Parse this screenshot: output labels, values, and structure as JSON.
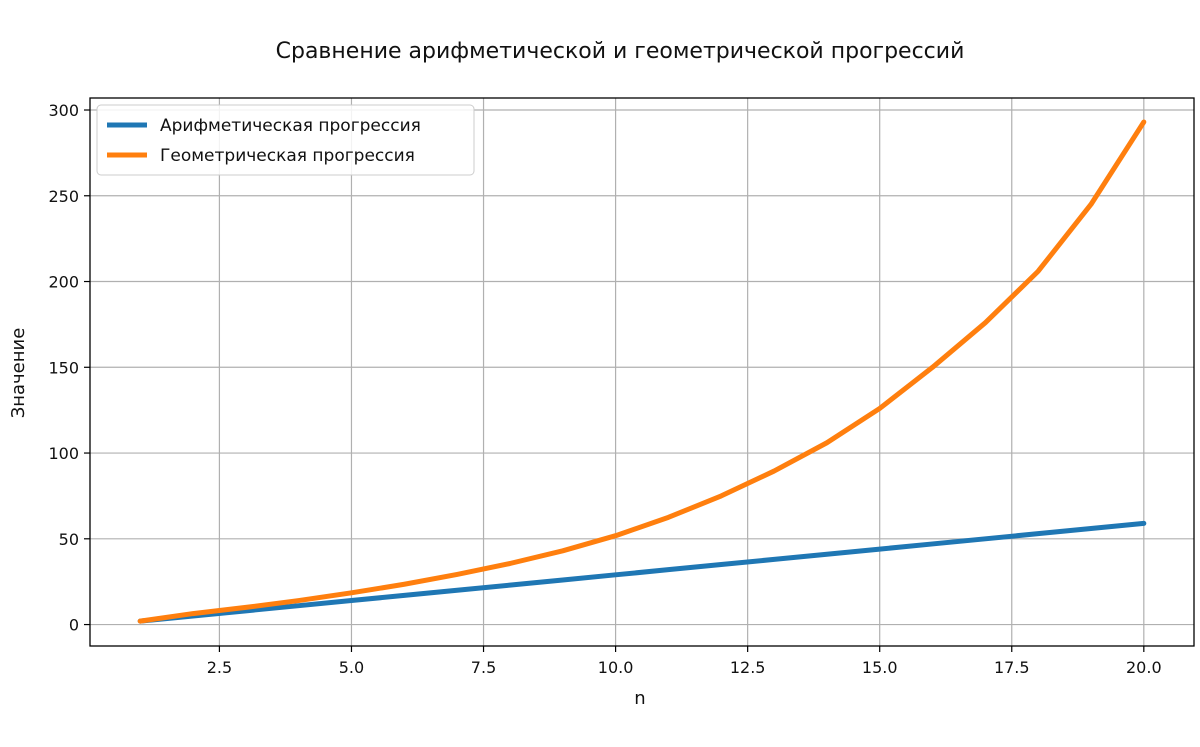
{
  "chart_data": {
    "type": "line",
    "title": "Сравнение арифметической и геометрической прогрессий",
    "xlabel": "n",
    "ylabel": "Значение",
    "xlim": [
      0.05,
      20.95
    ],
    "ylim": [
      -12.5,
      307
    ],
    "xticks": [
      2.5,
      5.0,
      7.5,
      10.0,
      12.5,
      15.0,
      17.5,
      20.0
    ],
    "xtick_labels": [
      "2.5",
      "5.0",
      "7.5",
      "10.0",
      "12.5",
      "15.0",
      "17.5",
      "20.0"
    ],
    "yticks": [
      0,
      50,
      100,
      150,
      200,
      250,
      300
    ],
    "ytick_labels": [
      "0",
      "50",
      "100",
      "150",
      "200",
      "250",
      "300"
    ],
    "grid": true,
    "legend_position": "top-left",
    "x": [
      1,
      2,
      3,
      4,
      5,
      6,
      7,
      8,
      9,
      10,
      11,
      12,
      13,
      14,
      15,
      16,
      17,
      18,
      19,
      20
    ],
    "series": [
      {
        "name": "Арифметическая прогрессия",
        "color": "#1f77b4",
        "values": [
          2,
          5,
          8,
          11,
          14,
          17,
          20,
          23,
          26,
          29,
          32,
          35,
          38,
          41,
          44,
          47,
          50,
          53,
          56,
          59
        ]
      },
      {
        "name": "Геометрическая прогрессия",
        "color": "#ff7f0e",
        "values": [
          2.0,
          6.4,
          10.0,
          14.0,
          18.5,
          23.5,
          29.2,
          35.6,
          43.0,
          51.8,
          62.5,
          75.0,
          89.5,
          106.0,
          126.0,
          150.0,
          176.0,
          206.0,
          245.0,
          293.0
        ]
      }
    ]
  }
}
